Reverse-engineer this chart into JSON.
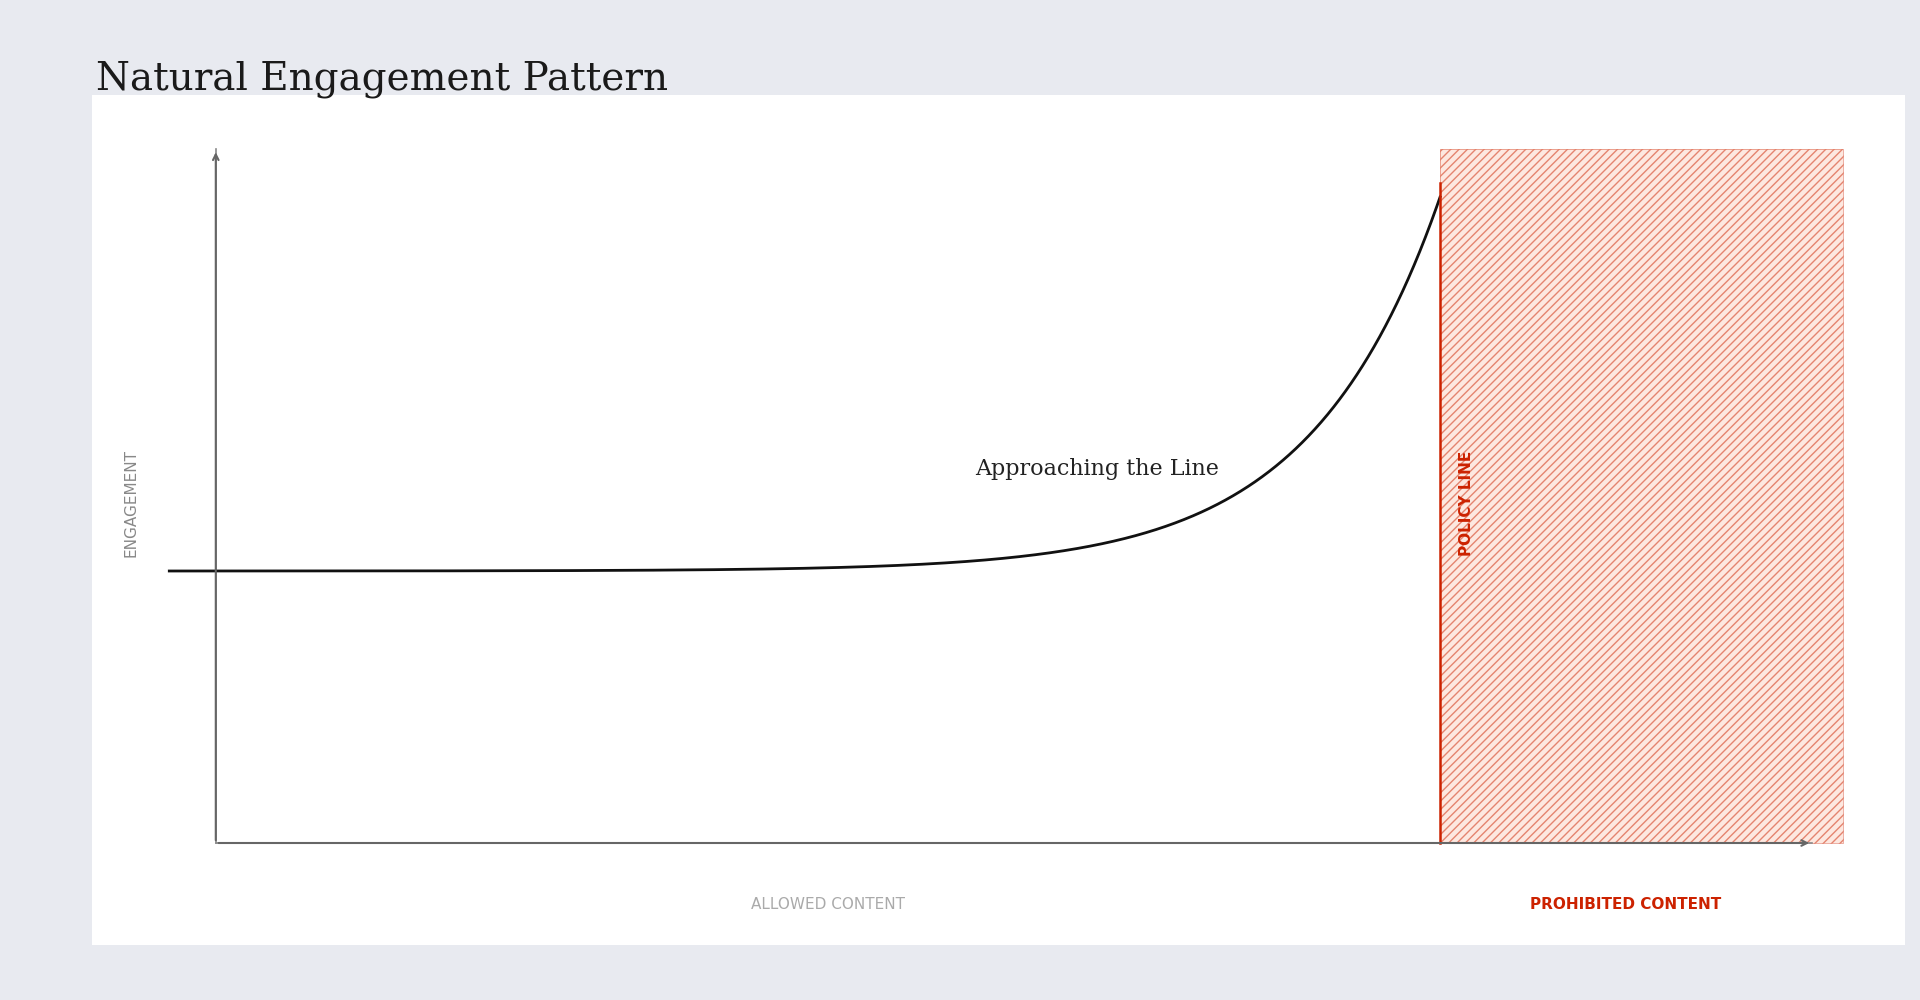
{
  "title": "Natural Engagement Pattern",
  "title_fontsize": 28,
  "title_font": "serif",
  "background_color": "#e8eaf0",
  "plot_background_color": "#ffffff",
  "xlabel_allowed": "ALLOWED CONTENT",
  "xlabel_prohibited": "PROHIBITED CONTENT",
  "ylabel": "ENGAGEMENT",
  "policy_line_label": "POLICY LINE",
  "annotation_text": "Approaching the Line",
  "annotation_fontsize": 16,
  "axis_label_fontsize": 11,
  "policy_line_color": "#cc2200",
  "hatch_facecolor": "#fde8e0",
  "hatch_pattern": "////",
  "curve_color": "#111111",
  "curve_linewidth": 2.0,
  "policy_line_x": 0.82,
  "x_axis_start": 0.03,
  "x_axis_end": 1.06,
  "y_axis_start": 0.0,
  "y_axis_end": 1.02,
  "y_baseline": 0.4,
  "y_max": 0.95,
  "k": 12.0
}
